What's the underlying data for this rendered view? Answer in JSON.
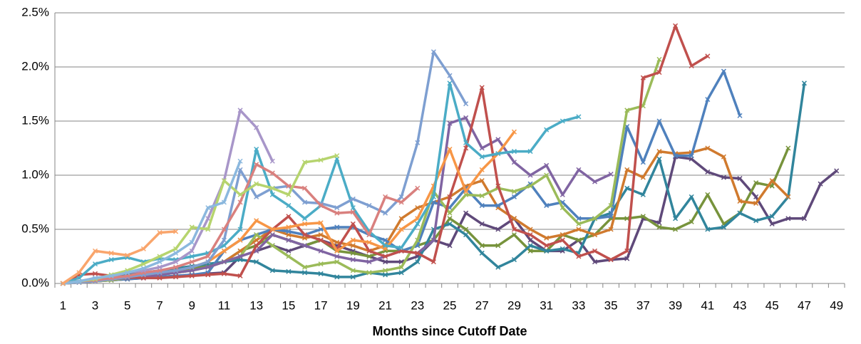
{
  "chart_data": {
    "type": "line",
    "x_label": "Months since Cutoff Date",
    "categories": [
      1,
      null,
      3,
      null,
      5,
      null,
      7,
      null,
      9,
      null,
      11,
      null,
      13,
      null,
      15,
      null,
      17,
      null,
      19,
      null,
      21,
      null,
      23,
      null,
      25,
      null,
      27,
      null,
      29,
      null,
      31,
      null,
      33,
      null,
      35,
      null,
      37,
      null,
      39,
      null,
      41,
      null,
      43,
      null,
      45,
      null,
      47,
      null,
      49
    ],
    "ylim": [
      0,
      2.5
    ],
    "yticks": [
      {
        "value": 0,
        "label": "0.0%"
      },
      {
        "value": 0.5,
        "label": "0.5%"
      },
      {
        "value": 1,
        "label": "1.0%"
      },
      {
        "value": 1.5,
        "label": "1.5%"
      },
      {
        "value": 2,
        "label": "2.0%"
      },
      {
        "value": 2.5,
        "label": "2.5%"
      }
    ],
    "grid": true,
    "series": [
      {
        "color": "#5F497A",
        "values": [
          0,
          0.01,
          0.02,
          0.03,
          0.04,
          0.05,
          0.06,
          0.07,
          0.08,
          0.09,
          0.1,
          0.25,
          0.3,
          0.35,
          0.3,
          0.35,
          0.4,
          0.35,
          0.3,
          0.25,
          0.2,
          0.2,
          0.25,
          0.4,
          0.35,
          0.65,
          0.55,
          0.5,
          0.6,
          0.4,
          0.3,
          0.3,
          0.4,
          0.2,
          0.22,
          0.23,
          0.6,
          0.56,
          1.17,
          1.15,
          1.03,
          0.98,
          0.97,
          0.8,
          0.55,
          0.6,
          0.6,
          0.92,
          1.04
        ]
      },
      {
        "color": "#77933C",
        "values": [
          0,
          0.02,
          0.04,
          0.06,
          0.08,
          0.1,
          0.1,
          0.12,
          0.14,
          0.16,
          0.2,
          0.3,
          0.35,
          0.45,
          0.4,
          0.35,
          0.4,
          0.3,
          0.28,
          0.25,
          0.3,
          0.3,
          0.35,
          0.4,
          0.6,
          0.5,
          0.35,
          0.35,
          0.45,
          0.3,
          0.3,
          0.45,
          0.4,
          0.45,
          0.6,
          0.6,
          0.62,
          0.52,
          0.5,
          0.57,
          0.82,
          0.55,
          0.65,
          0.93,
          0.9,
          1.25,
          null,
          null,
          null
        ]
      },
      {
        "color": "#31859C",
        "values": [
          0,
          0.02,
          0.04,
          0.06,
          0.08,
          0.1,
          0.12,
          0.14,
          0.16,
          0.18,
          0.2,
          0.22,
          0.2,
          0.12,
          0.11,
          0.1,
          0.09,
          0.06,
          0.06,
          0.1,
          0.08,
          0.1,
          0.2,
          0.5,
          0.55,
          0.45,
          0.28,
          0.15,
          0.22,
          0.35,
          0.3,
          0.32,
          0.28,
          0.6,
          0.65,
          0.88,
          0.82,
          1.15,
          0.6,
          0.8,
          0.5,
          0.52,
          0.65,
          0.58,
          0.62,
          0.8,
          1.85,
          null,
          null
        ]
      },
      {
        "color": "#D07A2E",
        "values": [
          0,
          0.01,
          0.02,
          0.03,
          0.04,
          0.06,
          0.08,
          0.1,
          0.12,
          0.15,
          0.2,
          0.3,
          0.4,
          0.5,
          0.45,
          0.42,
          0.45,
          0.38,
          0.35,
          0.3,
          0.35,
          0.6,
          0.7,
          0.75,
          0.8,
          0.9,
          0.95,
          0.7,
          0.6,
          0.5,
          0.42,
          0.45,
          0.5,
          0.45,
          0.5,
          1.05,
          0.98,
          1.22,
          1.2,
          1.21,
          1.25,
          1.17,
          0.76,
          0.74,
          0.95,
          0.8,
          null,
          null,
          null
        ]
      },
      {
        "color": "#4F81BD",
        "values": [
          0,
          0.01,
          0.02,
          0.03,
          0.04,
          0.05,
          0.06,
          0.07,
          0.08,
          0.1,
          0.3,
          0.4,
          0.45,
          0.5,
          0.48,
          0.45,
          0.5,
          0.52,
          0.52,
          0.45,
          0.4,
          0.3,
          0.35,
          0.75,
          0.7,
          0.88,
          0.72,
          0.72,
          0.8,
          0.92,
          0.72,
          0.75,
          0.6,
          0.6,
          0.62,
          1.45,
          1.12,
          1.5,
          1.18,
          1.18,
          1.7,
          1.96,
          1.55,
          null,
          null,
          null,
          null,
          null,
          null
        ]
      },
      {
        "color": "#9BBB59",
        "values": [
          0,
          0.01,
          0.02,
          0.03,
          0.05,
          0.06,
          0.08,
          0.1,
          0.12,
          0.15,
          0.2,
          0.25,
          0.45,
          0.35,
          0.25,
          0.15,
          0.18,
          0.2,
          0.12,
          0.1,
          0.12,
          0.15,
          0.4,
          0.85,
          0.65,
          0.82,
          0.81,
          0.88,
          0.85,
          0.9,
          1.0,
          0.7,
          0.55,
          0.6,
          0.72,
          1.6,
          1.64,
          2.07,
          null,
          null,
          null,
          null,
          null,
          null,
          null,
          null,
          null,
          null,
          null
        ]
      },
      {
        "color": "#8064A2",
        "values": [
          0,
          0.01,
          0.02,
          0.04,
          0.05,
          0.06,
          0.08,
          0.1,
          0.12,
          0.15,
          0.2,
          0.25,
          0.3,
          0.45,
          0.4,
          0.35,
          0.3,
          0.25,
          0.22,
          0.2,
          0.25,
          0.3,
          0.28,
          0.4,
          1.48,
          1.53,
          1.25,
          1.33,
          1.12,
          1.0,
          1.09,
          0.82,
          1.05,
          0.94,
          1.01,
          null,
          null,
          null,
          null,
          null,
          null,
          null,
          null,
          null,
          null,
          null,
          null,
          null,
          null
        ]
      },
      {
        "color": "#C0504D",
        "values": [
          0,
          0.08,
          0.09,
          0.07,
          0.06,
          0.05,
          0.05,
          0.06,
          0.07,
          0.08,
          0.09,
          0.07,
          0.35,
          0.5,
          0.62,
          0.45,
          0.4,
          0.32,
          0.55,
          0.3,
          0.25,
          0.3,
          0.28,
          0.2,
          0.8,
          1.25,
          1.81,
          0.9,
          0.5,
          0.45,
          0.35,
          0.4,
          0.25,
          0.3,
          0.22,
          0.3,
          1.9,
          1.95,
          2.38,
          2.01,
          2.1,
          null,
          null,
          null,
          null,
          null,
          null,
          null,
          null
        ]
      },
      {
        "color": "#F79646",
        "values": [
          0,
          0.01,
          0.02,
          0.04,
          0.06,
          0.08,
          0.1,
          0.12,
          0.15,
          0.2,
          0.3,
          0.4,
          0.58,
          0.5,
          0.52,
          0.55,
          0.56,
          0.3,
          0.4,
          0.38,
          0.32,
          0.5,
          0.6,
          0.9,
          1.24,
          0.85,
          1.05,
          1.2,
          1.4,
          null,
          null,
          null,
          null,
          null,
          null,
          null,
          null,
          null,
          null,
          null,
          null,
          null,
          null,
          null,
          null,
          null,
          null,
          null,
          null
        ]
      },
      {
        "color": "#4BACC6",
        "values": [
          0,
          0.05,
          0.18,
          0.22,
          0.24,
          0.2,
          0.23,
          0.22,
          0.25,
          0.28,
          0.35,
          0.5,
          1.24,
          0.82,
          0.72,
          0.6,
          0.72,
          1.15,
          0.7,
          0.48,
          0.35,
          0.33,
          0.55,
          0.8,
          1.85,
          1.3,
          1.17,
          1.2,
          1.22,
          1.22,
          1.42,
          1.5,
          1.54,
          null,
          null,
          null,
          null,
          null,
          null,
          null,
          null,
          null,
          null,
          null,
          null,
          null,
          null,
          null,
          null
        ]
      },
      {
        "color": "#7E9FD1",
        "values": [
          0,
          0.01,
          0.02,
          0.04,
          0.06,
          0.08,
          0.1,
          0.12,
          0.15,
          0.2,
          0.4,
          1.05,
          0.8,
          0.88,
          0.9,
          0.75,
          0.74,
          0.7,
          0.78,
          0.72,
          0.65,
          0.8,
          1.3,
          2.14,
          1.92,
          1.66,
          null,
          null,
          null,
          null,
          null,
          null,
          null,
          null,
          null,
          null,
          null,
          null,
          null,
          null,
          null,
          null,
          null,
          null,
          null,
          null,
          null,
          null,
          null
        ]
      },
      {
        "color": "#D9807E",
        "values": [
          0,
          0.02,
          0.03,
          0.05,
          0.07,
          0.1,
          0.12,
          0.15,
          0.2,
          0.25,
          0.5,
          0.75,
          1.1,
          1.02,
          0.9,
          0.88,
          0.72,
          0.65,
          0.66,
          0.45,
          0.8,
          0.75,
          0.88,
          null,
          null,
          null,
          null,
          null,
          null,
          null,
          null,
          null,
          null,
          null,
          null,
          null,
          null,
          null,
          null,
          null,
          null,
          null,
          null,
          null,
          null,
          null,
          null,
          null,
          null
        ]
      },
      {
        "color": "#A896C9",
        "values": [
          0,
          0.02,
          0.05,
          0.07,
          0.1,
          0.12,
          0.15,
          0.2,
          0.3,
          0.6,
          0.95,
          1.6,
          1.44,
          1.13,
          null,
          null,
          null,
          null,
          null,
          null,
          null,
          null,
          null,
          null,
          null,
          null,
          null,
          null,
          null,
          null,
          null,
          null,
          null,
          null,
          null,
          null,
          null,
          null,
          null,
          null,
          null,
          null,
          null,
          null,
          null,
          null,
          null,
          null,
          null
        ]
      },
      {
        "color": "#B6D46E",
        "values": [
          0,
          0.02,
          0.04,
          0.08,
          0.12,
          0.18,
          0.25,
          0.32,
          0.52,
          0.5,
          0.95,
          0.82,
          0.92,
          0.88,
          0.82,
          1.12,
          1.14,
          1.18,
          null,
          null,
          null,
          null,
          null,
          null,
          null,
          null,
          null,
          null,
          null,
          null,
          null,
          null,
          null,
          null,
          null,
          null,
          null,
          null,
          null,
          null,
          null,
          null,
          null,
          null,
          null,
          null,
          null,
          null,
          null
        ]
      },
      {
        "color": "#8BB8DE",
        "values": [
          0,
          0.02,
          0.05,
          0.07,
          0.1,
          0.14,
          0.2,
          0.28,
          0.38,
          0.7,
          0.75,
          1.13,
          null,
          null,
          null,
          null,
          null,
          null,
          null,
          null,
          null,
          null,
          null,
          null,
          null,
          null,
          null,
          null,
          null,
          null,
          null,
          null,
          null,
          null,
          null,
          null,
          null,
          null,
          null,
          null,
          null,
          null,
          null,
          null,
          null,
          null,
          null,
          null,
          null
        ]
      },
      {
        "color": "#F9A56C",
        "values": [
          0,
          0.1,
          0.3,
          0.28,
          0.26,
          0.32,
          0.47,
          0.48,
          null,
          null,
          null,
          null,
          null,
          null,
          null,
          null,
          null,
          null,
          null,
          null,
          null,
          null,
          null,
          null,
          null,
          null,
          null,
          null,
          null,
          null,
          null,
          null,
          null,
          null,
          null,
          null,
          null,
          null,
          null,
          null,
          null,
          null,
          null,
          null,
          null,
          null,
          null,
          null,
          null
        ]
      }
    ]
  }
}
